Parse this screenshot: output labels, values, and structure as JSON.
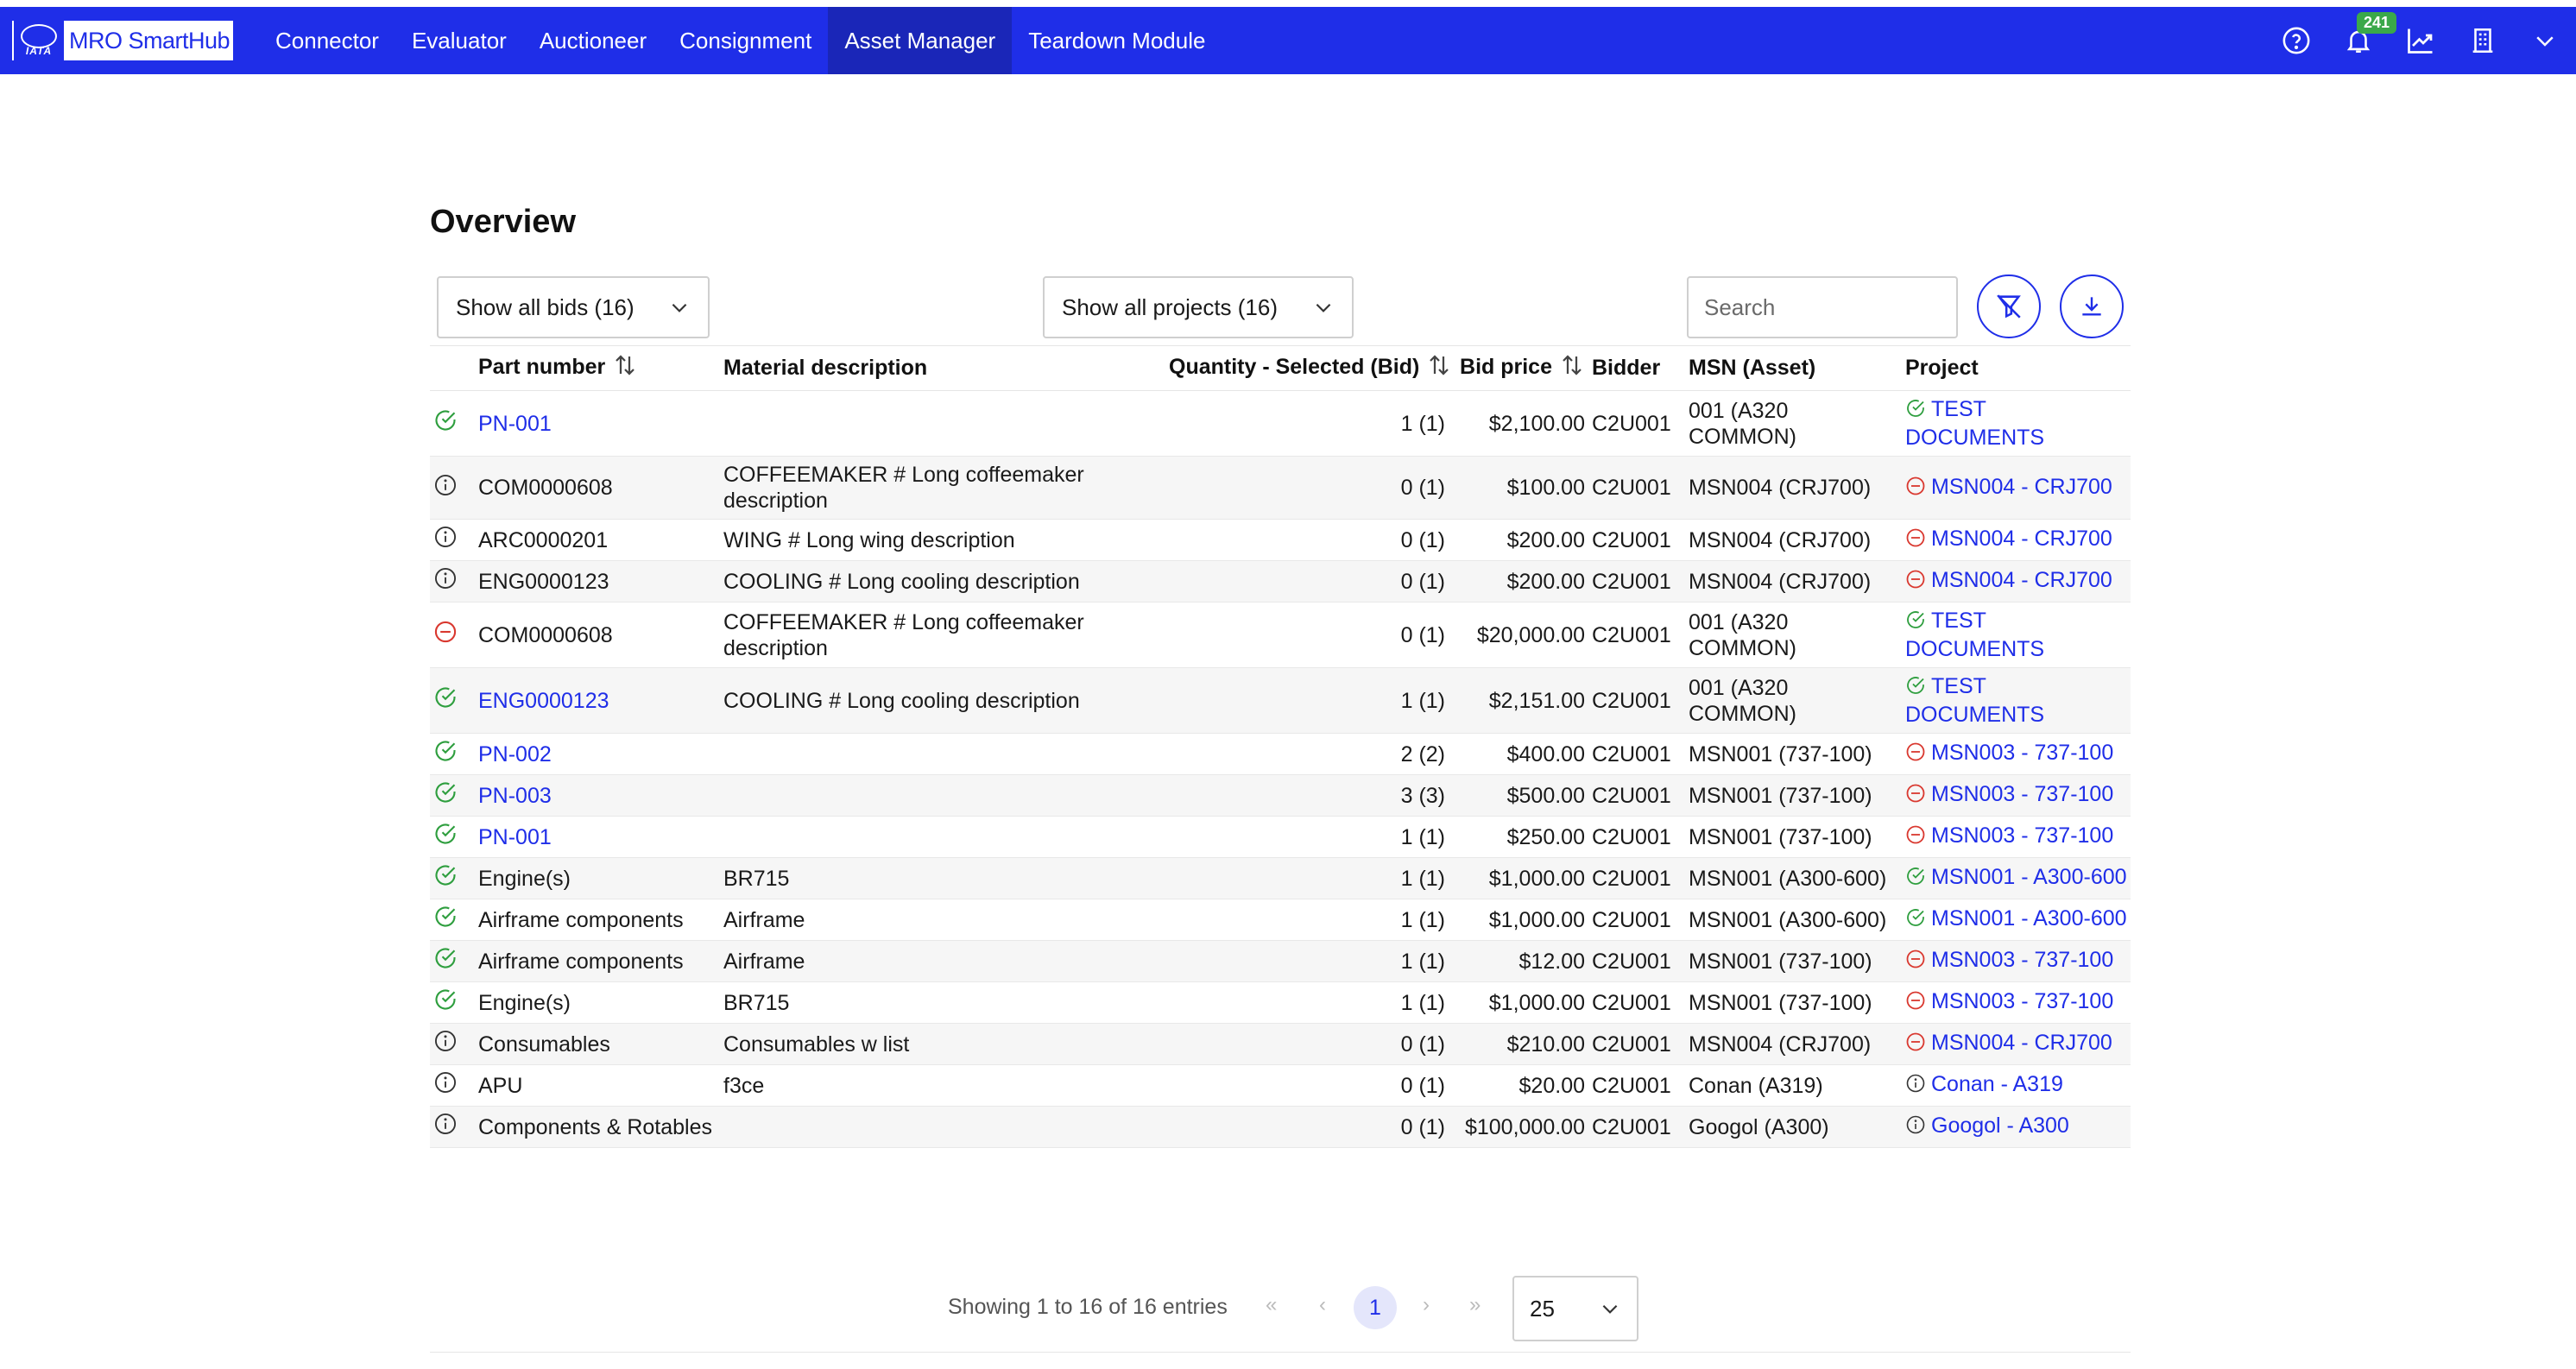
{
  "header": {
    "logo_text": "MRO SmartHub",
    "logo_mark_text": "IATA",
    "nav": [
      "Connector",
      "Evaluator",
      "Auctioneer",
      "Consignment",
      "Asset Manager",
      "Teardown Module"
    ],
    "active_nav": "Asset Manager",
    "notification_count": "241",
    "accent_color": "#1f2ee8"
  },
  "main": {
    "title": "Overview",
    "bids_filter": "Show all bids (16)",
    "projects_filter": "Show all projects (16)",
    "search_placeholder": "Search"
  },
  "table": {
    "columns": [
      "Part number",
      "Material description",
      "Quantity - Selected (Bid)",
      "Bid price",
      "Bidder",
      "MSN (Asset)",
      "Project"
    ],
    "rows": [
      {
        "status": "check",
        "part": "PN-001",
        "part_link": true,
        "desc": "",
        "qty": "1 (1)",
        "price": "$2,100.00",
        "bidder": "C2U001",
        "msn": "001 (A320 COMMON)",
        "project_status": "check",
        "project": "TEST DOCUMENTS"
      },
      {
        "status": "info",
        "part": "COM0000608",
        "part_link": false,
        "desc": "COFFEEMAKER # Long coffeemaker description",
        "qty": "0 (1)",
        "price": "$100.00",
        "bidder": "C2U001",
        "msn": "MSN004 (CRJ700)",
        "project_status": "minus",
        "project": "MSN004 - CRJ700"
      },
      {
        "status": "info",
        "part": "ARC0000201",
        "part_link": false,
        "desc": "WING # Long wing description",
        "qty": "0 (1)",
        "price": "$200.00",
        "bidder": "C2U001",
        "msn": "MSN004 (CRJ700)",
        "project_status": "minus",
        "project": "MSN004 - CRJ700"
      },
      {
        "status": "info",
        "part": "ENG0000123",
        "part_link": false,
        "desc": "COOLING # Long cooling description",
        "qty": "0 (1)",
        "price": "$200.00",
        "bidder": "C2U001",
        "msn": "MSN004 (CRJ700)",
        "project_status": "minus",
        "project": "MSN004 - CRJ700"
      },
      {
        "status": "minus",
        "part": "COM0000608",
        "part_link": false,
        "desc": "COFFEEMAKER # Long coffeemaker description",
        "qty": "0 (1)",
        "price": "$20,000.00",
        "bidder": "C2U001",
        "msn": "001 (A320 COMMON)",
        "project_status": "check",
        "project": "TEST DOCUMENTS"
      },
      {
        "status": "check",
        "part": "ENG0000123",
        "part_link": true,
        "desc": "COOLING # Long cooling description",
        "qty": "1 (1)",
        "price": "$2,151.00",
        "bidder": "C2U001",
        "msn": "001 (A320 COMMON)",
        "project_status": "check",
        "project": "TEST DOCUMENTS"
      },
      {
        "status": "check",
        "part": "PN-002",
        "part_link": true,
        "desc": "",
        "qty": "2 (2)",
        "price": "$400.00",
        "bidder": "C2U001",
        "msn": "MSN001 (737-100)",
        "project_status": "minus",
        "project": "MSN003 - 737-100"
      },
      {
        "status": "check",
        "part": "PN-003",
        "part_link": true,
        "desc": "",
        "qty": "3 (3)",
        "price": "$500.00",
        "bidder": "C2U001",
        "msn": "MSN001 (737-100)",
        "project_status": "minus",
        "project": "MSN003 - 737-100"
      },
      {
        "status": "check",
        "part": "PN-001",
        "part_link": true,
        "desc": "",
        "qty": "1 (1)",
        "price": "$250.00",
        "bidder": "C2U001",
        "msn": "MSN001 (737-100)",
        "project_status": "minus",
        "project": "MSN003 - 737-100"
      },
      {
        "status": "check",
        "part": "Engine(s)",
        "part_link": false,
        "desc": "BR715",
        "qty": "1 (1)",
        "price": "$1,000.00",
        "bidder": "C2U001",
        "msn": "MSN001 (A300-600)",
        "project_status": "check",
        "project": "MSN001 - A300-600"
      },
      {
        "status": "check",
        "part": "Airframe components",
        "part_link": false,
        "desc": "Airframe",
        "qty": "1 (1)",
        "price": "$1,000.00",
        "bidder": "C2U001",
        "msn": "MSN001 (A300-600)",
        "project_status": "check",
        "project": "MSN001 - A300-600"
      },
      {
        "status": "check",
        "part": "Airframe components",
        "part_link": false,
        "desc": "Airframe",
        "qty": "1 (1)",
        "price": "$12.00",
        "bidder": "C2U001",
        "msn": "MSN001 (737-100)",
        "project_status": "minus",
        "project": "MSN003 - 737-100"
      },
      {
        "status": "check",
        "part": "Engine(s)",
        "part_link": false,
        "desc": "BR715",
        "qty": "1 (1)",
        "price": "$1,000.00",
        "bidder": "C2U001",
        "msn": "MSN001 (737-100)",
        "project_status": "minus",
        "project": "MSN003 - 737-100"
      },
      {
        "status": "info",
        "part": "Consumables",
        "part_link": false,
        "desc": "Consumables w list",
        "qty": "0 (1)",
        "price": "$210.00",
        "bidder": "C2U001",
        "msn": "MSN004 (CRJ700)",
        "project_status": "minus",
        "project": "MSN004 - CRJ700"
      },
      {
        "status": "info",
        "part": "APU",
        "part_link": false,
        "desc": "f3ce",
        "qty": "0 (1)",
        "price": "$20.00",
        "bidder": "C2U001",
        "msn": "Conan (A319)",
        "project_status": "info",
        "project": "Conan - A319"
      },
      {
        "status": "info",
        "part": "Components & Rotables",
        "part_link": false,
        "desc": "",
        "qty": "0 (1)",
        "price": "$100,000.00",
        "bidder": "C2U001",
        "msn": "Googol (A300)",
        "project_status": "info",
        "project": "Googol - A300"
      }
    ]
  },
  "pagination": {
    "summary": "Showing 1 to 16 of 16 entries",
    "current_page": "1",
    "page_size": "25",
    "first_glyph": "«",
    "prev_glyph": "‹",
    "next_glyph": "›",
    "last_glyph": "»"
  },
  "status_colors": {
    "check": "#2e9e3e",
    "minus": "#d9382f",
    "info": "#333333"
  }
}
